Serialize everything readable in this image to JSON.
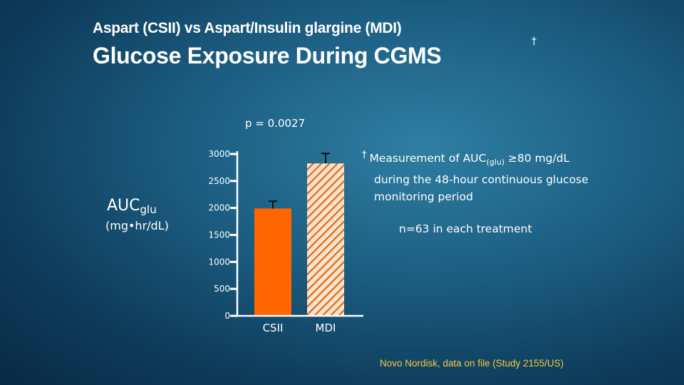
{
  "header": {
    "title": "Aspart (CSII) vs Aspart/Insulin glargine (MDI)",
    "subtitle": "Glucose Exposure During CGMS",
    "dagger": "†"
  },
  "annotation": {
    "p_value": "p = 0.0027"
  },
  "footnote": {
    "dagger": "†",
    "line1_pre": "Measurement of AUC",
    "line1_sub": "(glu)",
    "line1_post": " ≥80 mg/dL",
    "rest": "during the 48-hour continuous glucose monitoring period"
  },
  "n_label": "n=63 in each treatment",
  "source": "Novo Nordisk, data on file (Study 2155/US)",
  "colors": {
    "csii_bar": "#ff6600",
    "mdi_hatch": "#e06a18",
    "mdi_bg": "#fce4cf",
    "axis": "#ffffff"
  },
  "chart_data": {
    "type": "bar",
    "title": "",
    "ylabel_main": "AUC",
    "ylabel_sub": "glu",
    "ylabel_unit": "(mg•hr/dL)",
    "xlabel": "",
    "categories": [
      "CSII",
      "MDI"
    ],
    "values": [
      1990,
      2825
    ],
    "error_upper": [
      2125,
      3010
    ],
    "patterns": [
      "solid",
      "hatched"
    ],
    "yticks": [
      0,
      500,
      1000,
      1500,
      2000,
      2500,
      3000
    ],
    "ytick_labels": [
      "0",
      "500",
      "1000",
      "1500",
      "2000",
      "2500",
      "3000"
    ],
    "ylim": [
      0,
      3000
    ],
    "grid": false,
    "legend": "none"
  }
}
